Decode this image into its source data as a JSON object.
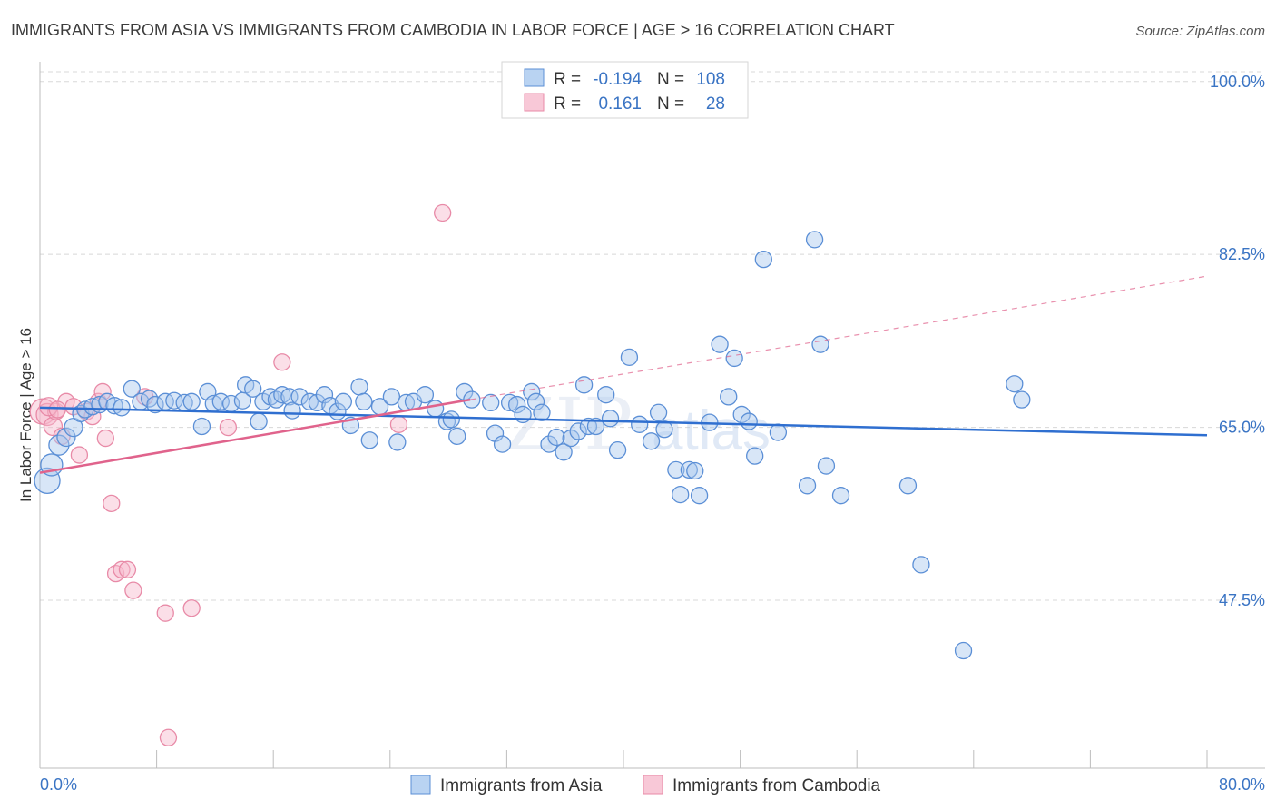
{
  "header": {
    "title": "IMMIGRANTS FROM ASIA VS IMMIGRANTS FROM CAMBODIA IN LABOR FORCE | AGE > 16 CORRELATION CHART",
    "source": "Source: ZipAtlas.com"
  },
  "watermark": {
    "zip": "ZIP",
    "atlas": "atlas"
  },
  "legend_box": {
    "rows": [
      {
        "r_label": "R =",
        "r_value": "-0.194",
        "n_label": "N =",
        "n_value": "108"
      },
      {
        "r_label": "R =",
        "r_value": "0.161",
        "n_label": "N =",
        "n_value": "28"
      }
    ]
  },
  "colors": {
    "asia_fill": "#a9c8ee",
    "asia_stroke": "#5b8fd6",
    "asia_line": "#2f6fd0",
    "cambodia_fill": "#f6b8cb",
    "cambodia_stroke": "#e88aa7",
    "cambodia_line": "#e0638c",
    "tick_text": "#3a74c4",
    "grid": "#d8d8d8"
  },
  "chart_data": {
    "type": "scatter",
    "title": "IMMIGRANTS FROM ASIA VS IMMIGRANTS FROM CAMBODIA IN LABOR FORCE | AGE > 16 CORRELATION CHART",
    "xlabel": "",
    "ylabel": "In Labor Force | Age > 16",
    "xlim": [
      0,
      80
    ],
    "ylim": [
      30.5,
      102
    ],
    "x_tick_labels": [
      "0.0%",
      "80.0%"
    ],
    "y_ticks": [
      47.5,
      65.0,
      82.5,
      100.0
    ],
    "y_tick_labels": [
      "47.5%",
      "65.0%",
      "82.5%",
      "100.0%"
    ],
    "grid": true,
    "legend_position": "bottom",
    "series": [
      {
        "name": "Immigrants from Asia",
        "r": -0.194,
        "n": 108,
        "trend": {
          "x0": 0,
          "y0": 67.0,
          "x1": 80,
          "y1": 64.2
        },
        "points": [
          [
            0.5,
            59.6,
            14
          ],
          [
            0.8,
            61.2,
            12
          ],
          [
            1.3,
            63.2,
            11
          ],
          [
            1.8,
            64.0,
            10
          ],
          [
            2.3,
            65.0,
            10
          ],
          [
            2.8,
            66.4,
            9
          ],
          [
            3.1,
            66.8,
            9
          ],
          [
            3.6,
            67.1,
            9
          ],
          [
            4.1,
            67.3,
            9
          ],
          [
            4.6,
            67.6,
            9
          ],
          [
            5.1,
            67.2,
            9
          ],
          [
            5.6,
            67.0,
            9
          ],
          [
            6.3,
            68.9,
            9
          ],
          [
            6.9,
            67.6,
            9
          ],
          [
            7.5,
            67.9,
            9
          ],
          [
            7.9,
            67.3,
            9
          ],
          [
            8.6,
            67.6,
            9
          ],
          [
            9.2,
            67.7,
            9
          ],
          [
            9.9,
            67.5,
            9
          ],
          [
            10.4,
            67.6,
            9
          ],
          [
            11.1,
            65.1,
            9
          ],
          [
            11.5,
            68.6,
            9
          ],
          [
            11.9,
            67.4,
            9
          ],
          [
            12.4,
            67.6,
            9
          ],
          [
            13.1,
            67.4,
            9
          ],
          [
            13.9,
            67.7,
            9
          ],
          [
            14.1,
            69.3,
            9
          ],
          [
            14.6,
            68.9,
            9
          ],
          [
            15.0,
            65.6,
            9
          ],
          [
            15.3,
            67.6,
            9
          ],
          [
            15.8,
            68.1,
            9
          ],
          [
            16.2,
            67.8,
            9
          ],
          [
            16.6,
            68.3,
            9
          ],
          [
            17.1,
            68.1,
            9
          ],
          [
            17.3,
            66.7,
            9
          ],
          [
            17.8,
            68.1,
            9
          ],
          [
            18.5,
            67.6,
            9
          ],
          [
            19.0,
            67.5,
            9
          ],
          [
            19.5,
            68.3,
            9
          ],
          [
            19.9,
            67.2,
            9
          ],
          [
            20.4,
            66.6,
            9
          ],
          [
            20.8,
            67.6,
            9
          ],
          [
            21.3,
            65.2,
            9
          ],
          [
            21.9,
            69.1,
            9
          ],
          [
            22.2,
            67.6,
            9
          ],
          [
            22.6,
            63.7,
            9
          ],
          [
            23.3,
            67.1,
            9
          ],
          [
            24.1,
            68.1,
            9
          ],
          [
            24.5,
            63.5,
            9
          ],
          [
            25.1,
            67.5,
            9
          ],
          [
            25.6,
            67.6,
            9
          ],
          [
            26.4,
            68.3,
            9
          ],
          [
            27.1,
            66.9,
            9
          ],
          [
            27.9,
            65.6,
            9
          ],
          [
            28.2,
            65.8,
            9
          ],
          [
            28.6,
            64.1,
            9
          ],
          [
            29.1,
            68.6,
            9
          ],
          [
            29.6,
            67.8,
            9
          ],
          [
            30.9,
            67.5,
            9
          ],
          [
            31.2,
            64.4,
            9
          ],
          [
            31.7,
            63.3,
            9
          ],
          [
            32.2,
            67.5,
            9
          ],
          [
            32.7,
            67.3,
            9
          ],
          [
            33.1,
            66.3,
            9
          ],
          [
            33.7,
            68.6,
            9
          ],
          [
            34.0,
            67.6,
            9
          ],
          [
            34.4,
            66.5,
            9
          ],
          [
            34.9,
            63.3,
            9
          ],
          [
            35.4,
            64.0,
            9
          ],
          [
            35.9,
            62.5,
            9
          ],
          [
            36.4,
            63.9,
            9
          ],
          [
            36.9,
            64.6,
            9
          ],
          [
            37.3,
            69.3,
            9
          ],
          [
            37.6,
            65.1,
            9
          ],
          [
            38.1,
            65.1,
            9
          ],
          [
            38.8,
            68.3,
            9
          ],
          [
            39.1,
            65.9,
            9
          ],
          [
            39.6,
            62.7,
            9
          ],
          [
            40.4,
            72.1,
            9
          ],
          [
            41.1,
            65.3,
            9
          ],
          [
            41.9,
            63.6,
            9
          ],
          [
            42.4,
            66.5,
            9
          ],
          [
            42.8,
            64.8,
            9
          ],
          [
            43.6,
            60.7,
            9
          ],
          [
            43.9,
            58.2,
            9
          ],
          [
            44.5,
            60.7,
            9
          ],
          [
            44.9,
            60.6,
            9
          ],
          [
            45.2,
            58.1,
            9
          ],
          [
            45.9,
            65.5,
            9
          ],
          [
            46.6,
            73.4,
            9
          ],
          [
            47.2,
            68.1,
            9
          ],
          [
            47.6,
            72.0,
            9
          ],
          [
            48.1,
            66.3,
            9
          ],
          [
            48.6,
            65.6,
            9
          ],
          [
            49.0,
            62.1,
            9
          ],
          [
            49.6,
            82.0,
            9
          ],
          [
            50.6,
            64.5,
            9
          ],
          [
            52.6,
            59.1,
            9
          ],
          [
            53.1,
            84.0,
            9
          ],
          [
            53.5,
            73.4,
            9
          ],
          [
            53.9,
            61.1,
            9
          ],
          [
            54.9,
            58.1,
            9
          ],
          [
            59.5,
            59.1,
            9
          ],
          [
            60.4,
            51.1,
            9
          ],
          [
            63.3,
            42.4,
            9
          ],
          [
            66.8,
            69.4,
            9
          ],
          [
            67.3,
            67.8,
            9
          ]
        ]
      },
      {
        "name": "Immigrants from Cambodia",
        "r": 0.161,
        "n": 28,
        "trend": {
          "x0": 0,
          "y0": 60.4,
          "x1": 29.5,
          "y1": 67.8,
          "dash_x1": 80,
          "dash_y1": 80.3
        },
        "points": [
          [
            0.2,
            66.6,
            14
          ],
          [
            0.5,
            66.3,
            12
          ],
          [
            0.9,
            65.1,
            10
          ],
          [
            1.1,
            66.6,
            9
          ],
          [
            1.5,
            64.1,
            9
          ],
          [
            1.8,
            67.6,
            9
          ],
          [
            2.3,
            67.1,
            9
          ],
          [
            2.7,
            62.2,
            9
          ],
          [
            3.2,
            66.6,
            9
          ],
          [
            3.6,
            66.1,
            9
          ],
          [
            4.0,
            67.6,
            9
          ],
          [
            4.3,
            68.6,
            9
          ],
          [
            4.5,
            63.9,
            9
          ],
          [
            4.9,
            57.3,
            9
          ],
          [
            5.2,
            50.2,
            9
          ],
          [
            5.6,
            50.6,
            9
          ],
          [
            6.0,
            50.6,
            9
          ],
          [
            6.4,
            48.5,
            9
          ],
          [
            7.2,
            68.1,
            9
          ],
          [
            8.6,
            46.2,
            9
          ],
          [
            8.8,
            33.6,
            9
          ],
          [
            10.4,
            46.7,
            9
          ],
          [
            12.9,
            65.0,
            9
          ],
          [
            16.6,
            71.6,
            9
          ],
          [
            24.6,
            65.3,
            9
          ],
          [
            27.6,
            86.7,
            9
          ],
          [
            0.6,
            67.1,
            10
          ],
          [
            1.2,
            66.8,
            9
          ]
        ]
      }
    ]
  },
  "bottom_legend": {
    "asia": "Immigrants from Asia",
    "cambodia": "Immigrants from Cambodia"
  }
}
